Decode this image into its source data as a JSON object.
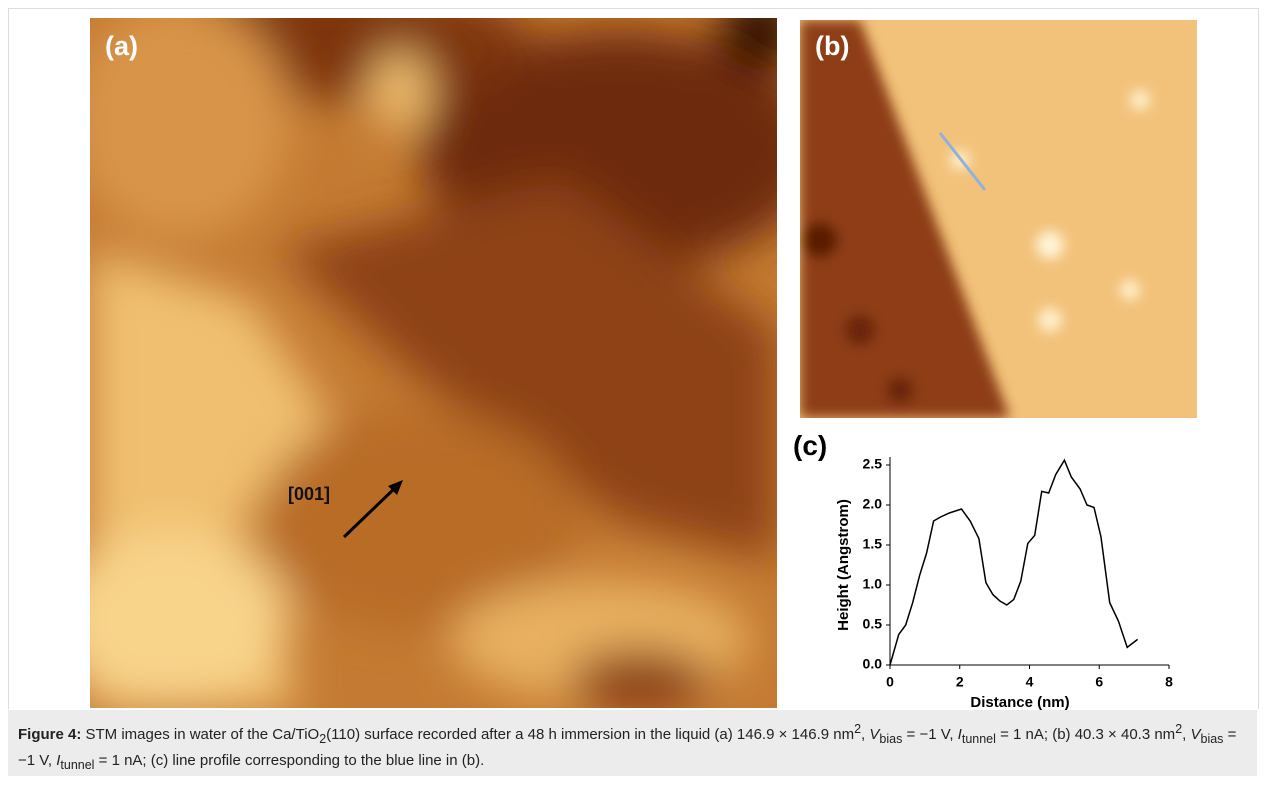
{
  "figure": {
    "panel_a_label": "(a)",
    "panel_b_label": "(b)",
    "panel_c_label": "(c)",
    "direction_label": "[001]"
  },
  "chart_data": {
    "type": "line",
    "x_label": "Distance (nm)",
    "y_label": "Height (Angstrom)",
    "x": [
      0,
      0.25,
      0.45,
      0.65,
      0.85,
      1.05,
      1.25,
      1.45,
      1.7,
      2.05,
      2.3,
      2.55,
      2.75,
      2.95,
      3.15,
      3.35,
      3.55,
      3.75,
      3.95,
      4.15,
      4.35,
      4.55,
      4.75,
      5.0,
      5.2,
      5.45,
      5.65,
      5.85,
      6.05,
      6.3,
      6.55,
      6.8,
      7.1
    ],
    "values": [
      0.0,
      0.38,
      0.5,
      0.78,
      1.12,
      1.4,
      1.8,
      1.85,
      1.9,
      1.95,
      1.8,
      1.58,
      1.03,
      0.88,
      0.8,
      0.75,
      0.82,
      1.05,
      1.52,
      1.62,
      2.17,
      2.15,
      2.38,
      2.56,
      2.35,
      2.2,
      2.0,
      1.97,
      1.6,
      0.78,
      0.55,
      0.22,
      0.32
    ],
    "color": "#000000",
    "xlim": [
      0,
      8
    ],
    "ylim": [
      0,
      2.6
    ],
    "xticks": [
      0,
      2,
      4,
      6,
      8
    ],
    "yticks": [
      {
        "value": 0,
        "label": "0.0"
      },
      0.5,
      {
        "value": 1,
        "label": "1.0"
      },
      1.5,
      {
        "value": 2,
        "label": "2.0"
      },
      2.5
    ]
  },
  "caption": {
    "label": "Figure 4:",
    "segments": [
      "STM images in water of the Ca/TiO",
      "2",
      "(110) surface recorded after a 48 h immersion in the liquid (a) 146.9 × 146.9 nm",
      "2",
      ", ",
      "V",
      "bias",
      " = −1 V, ",
      "I",
      "tunnel",
      " = 1 nA; (b) 40.3 × 40.3 nm",
      "2",
      ", ",
      "V",
      "bias",
      " = −1 V, ",
      "I",
      "tunnel",
      " = 1 nA; (c) line profile corresponding to the blue line in (b)."
    ]
  }
}
